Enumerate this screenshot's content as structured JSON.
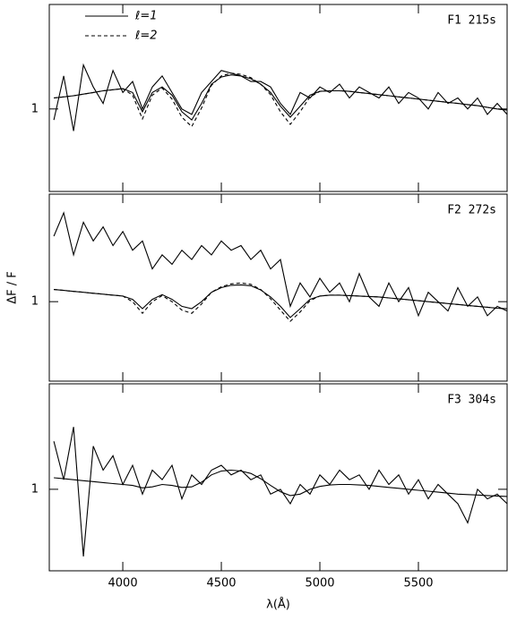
{
  "chart_data": [
    {
      "type": "line",
      "label": "F1 215s",
      "legend": "top-left",
      "show_xtick_labels": false,
      "xlim": [
        3627,
        5950
      ],
      "xticks": [
        4000,
        4500,
        5000,
        5500
      ],
      "ylim": [
        0.85,
        1.19
      ],
      "yticks": [
        1
      ],
      "x": [
        3650,
        3700,
        3750,
        3800,
        3850,
        3900,
        3950,
        4000,
        4050,
        4100,
        4150,
        4200,
        4250,
        4300,
        4350,
        4400,
        4450,
        4500,
        4550,
        4600,
        4650,
        4700,
        4750,
        4800,
        4850,
        4900,
        4950,
        5000,
        5050,
        5100,
        5150,
        5200,
        5250,
        5300,
        5350,
        5400,
        5450,
        5500,
        5550,
        5600,
        5650,
        5700,
        5750,
        5800,
        5850,
        5900,
        5950
      ],
      "series": [
        {
          "color": "#000000",
          "dash": false,
          "values": [
            0.98,
            1.06,
            0.96,
            1.08,
            1.04,
            1.01,
            1.07,
            1.03,
            1.05,
            1.0,
            1.04,
            1.06,
            1.03,
            1.0,
            0.99,
            1.03,
            1.05,
            1.07,
            1.065,
            1.06,
            1.05,
            1.05,
            1.04,
            1.01,
            0.99,
            1.03,
            1.02,
            1.04,
            1.03,
            1.045,
            1.02,
            1.04,
            1.03,
            1.02,
            1.04,
            1.01,
            1.03,
            1.02,
            1.0,
            1.03,
            1.01,
            1.02,
            1.0,
            1.02,
            0.99,
            1.01,
            0.99
          ]
        },
        {
          "name": "ℓ=1",
          "color": "#000000",
          "dash": false,
          "values": [
            1.02,
            1.022,
            1.024,
            1.027,
            1.03,
            1.033,
            1.035,
            1.037,
            1.03,
            0.995,
            1.03,
            1.04,
            1.025,
            0.995,
            0.98,
            1.01,
            1.045,
            1.058,
            1.062,
            1.06,
            1.055,
            1.045,
            1.03,
            1.005,
            0.985,
            1.005,
            1.025,
            1.032,
            1.033,
            1.033,
            1.032,
            1.03,
            1.028,
            1.026,
            1.024,
            1.022,
            1.02,
            1.018,
            1.016,
            1.014,
            1.012,
            1.01,
            1.008,
            1.006,
            1.003,
            1.0,
            0.998
          ]
        },
        {
          "name": "ℓ=2",
          "color": "#000000",
          "dash": true,
          "values": [
            1.02,
            1.022,
            1.024,
            1.027,
            1.03,
            1.033,
            1.035,
            1.037,
            1.025,
            0.982,
            1.025,
            1.038,
            1.018,
            0.985,
            0.968,
            1.002,
            1.043,
            1.06,
            1.065,
            1.063,
            1.057,
            1.045,
            1.026,
            0.995,
            0.972,
            0.995,
            1.022,
            1.032,
            1.033,
            1.033,
            1.032,
            1.03,
            1.028,
            1.026,
            1.024,
            1.022,
            1.02,
            1.018,
            1.016,
            1.014,
            1.012,
            1.01,
            1.008,
            1.006,
            1.003,
            1.0,
            0.998
          ]
        }
      ]
    },
    {
      "type": "line",
      "label": "F2 272s",
      "ylabel": "ΔF / F",
      "show_xtick_labels": false,
      "xlim": [
        3627,
        5950
      ],
      "xticks": [
        4000,
        4500,
        5000,
        5500
      ],
      "ylim": [
        0.83,
        1.23
      ],
      "yticks": [
        1
      ],
      "x": [
        3650,
        3700,
        3750,
        3800,
        3850,
        3900,
        3950,
        4000,
        4050,
        4100,
        4150,
        4200,
        4250,
        4300,
        4350,
        4400,
        4450,
        4500,
        4550,
        4600,
        4650,
        4700,
        4750,
        4800,
        4850,
        4900,
        4950,
        5000,
        5050,
        5100,
        5150,
        5200,
        5250,
        5300,
        5350,
        5400,
        5450,
        5500,
        5550,
        5600,
        5650,
        5700,
        5750,
        5800,
        5850,
        5900,
        5950
      ],
      "series": [
        {
          "color": "#000000",
          "dash": false,
          "values": [
            1.14,
            1.19,
            1.1,
            1.17,
            1.13,
            1.16,
            1.12,
            1.15,
            1.11,
            1.13,
            1.07,
            1.1,
            1.08,
            1.11,
            1.09,
            1.12,
            1.1,
            1.13,
            1.11,
            1.12,
            1.09,
            1.11,
            1.07,
            1.09,
            0.99,
            1.04,
            1.01,
            1.05,
            1.02,
            1.04,
            1.0,
            1.06,
            1.01,
            0.99,
            1.04,
            1.0,
            1.03,
            0.97,
            1.02,
            1.0,
            0.98,
            1.03,
            0.99,
            1.01,
            0.97,
            0.99,
            0.98
          ]
        },
        {
          "color": "#000000",
          "dash": false,
          "values": [
            1.026,
            1.024,
            1.022,
            1.02,
            1.018,
            1.016,
            1.014,
            1.012,
            1.005,
            0.985,
            1.005,
            1.015,
            1.005,
            0.99,
            0.985,
            1.0,
            1.02,
            1.03,
            1.035,
            1.036,
            1.034,
            1.025,
            1.01,
            0.99,
            0.966,
            0.985,
            1.005,
            1.012,
            1.014,
            1.014,
            1.013,
            1.012,
            1.011,
            1.01,
            1.008,
            1.006,
            1.004,
            1.002,
            1.0,
            0.998,
            0.996,
            0.994,
            0.992,
            0.99,
            0.988,
            0.986,
            0.985
          ]
        },
        {
          "color": "#000000",
          "dash": true,
          "values": [
            1.026,
            1.024,
            1.022,
            1.02,
            1.018,
            1.016,
            1.014,
            1.012,
            1.0,
            0.975,
            1.0,
            1.013,
            1.0,
            0.982,
            0.975,
            0.995,
            1.02,
            1.032,
            1.038,
            1.04,
            1.037,
            1.026,
            1.006,
            0.982,
            0.958,
            0.978,
            1.002,
            1.012,
            1.014,
            1.014,
            1.013,
            1.012,
            1.011,
            1.01,
            1.008,
            1.006,
            1.004,
            1.002,
            1.0,
            0.998,
            0.996,
            0.994,
            0.992,
            0.99,
            0.988,
            0.986,
            0.985
          ]
        }
      ]
    },
    {
      "type": "line",
      "label": "F3 304s",
      "xlabel": "λ(Å)",
      "show_xtick_labels": true,
      "xlim": [
        3627,
        5950
      ],
      "xticks": [
        4000,
        4500,
        5000,
        5500
      ],
      "ylim": [
        0.83,
        1.22
      ],
      "yticks": [
        1
      ],
      "x": [
        3650,
        3700,
        3750,
        3800,
        3850,
        3900,
        3950,
        4000,
        4050,
        4100,
        4150,
        4200,
        4250,
        4300,
        4350,
        4400,
        4450,
        4500,
        4550,
        4600,
        4650,
        4700,
        4750,
        4800,
        4850,
        4900,
        4950,
        5000,
        5050,
        5100,
        5150,
        5200,
        5250,
        5300,
        5350,
        5400,
        5450,
        5500,
        5550,
        5600,
        5650,
        5700,
        5750,
        5800,
        5850,
        5900,
        5950
      ],
      "series": [
        {
          "color": "#000000",
          "dash": false,
          "values": [
            1.1,
            1.02,
            1.13,
            0.86,
            1.09,
            1.04,
            1.07,
            1.01,
            1.05,
            0.99,
            1.04,
            1.02,
            1.05,
            0.98,
            1.03,
            1.01,
            1.04,
            1.05,
            1.03,
            1.04,
            1.02,
            1.03,
            0.99,
            1.0,
            0.97,
            1.01,
            0.99,
            1.03,
            1.01,
            1.04,
            1.02,
            1.03,
            1.0,
            1.04,
            1.01,
            1.03,
            0.99,
            1.02,
            0.98,
            1.01,
            0.99,
            0.97,
            0.93,
            1.0,
            0.98,
            0.99,
            0.97
          ]
        },
        {
          "color": "#000000",
          "dash": false,
          "values": [
            1.024,
            1.022,
            1.02,
            1.018,
            1.016,
            1.014,
            1.012,
            1.01,
            1.008,
            1.003,
            1.005,
            1.01,
            1.008,
            1.004,
            1.005,
            1.015,
            1.03,
            1.038,
            1.04,
            1.038,
            1.033,
            1.022,
            1.008,
            0.995,
            0.987,
            0.99,
            1.0,
            1.006,
            1.009,
            1.01,
            1.01,
            1.009,
            1.008,
            1.006,
            1.004,
            1.002,
            1.0,
            0.998,
            0.996,
            0.994,
            0.992,
            0.99,
            0.989,
            0.988,
            0.987,
            0.986,
            0.985
          ]
        }
      ]
    }
  ]
}
